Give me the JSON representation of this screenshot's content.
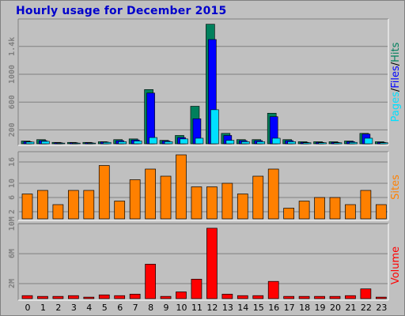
{
  "title": "Hourly usage for December 2015",
  "colors": {
    "background": "#c0c0c0",
    "title": "#0000cc",
    "hits": "#00805c",
    "files": "#0000ff",
    "pages": "#00e0ff",
    "sites": "#ff8000",
    "volume": "#ff0000",
    "tick_label": "#808080",
    "grid": "#808080"
  },
  "chart_data": [
    {
      "type": "bar",
      "categories": [
        "0",
        "1",
        "2",
        "3",
        "4",
        "5",
        "6",
        "7",
        "8",
        "9",
        "10",
        "11",
        "12",
        "13",
        "14",
        "15",
        "16",
        "17",
        "18",
        "19",
        "20",
        "21",
        "22",
        "23"
      ],
      "series": [
        {
          "name": "Hits",
          "color": "#00805c",
          "values": [
            40,
            60,
            20,
            20,
            20,
            30,
            60,
            70,
            780,
            50,
            120,
            540,
            1720,
            150,
            60,
            60,
            440,
            60,
            30,
            30,
            30,
            40,
            150,
            30
          ]
        },
        {
          "name": "Files",
          "color": "#0000ff",
          "values": [
            30,
            45,
            15,
            15,
            15,
            25,
            45,
            55,
            730,
            40,
            90,
            360,
            1500,
            120,
            45,
            45,
            390,
            45,
            20,
            20,
            20,
            30,
            140,
            20
          ]
        },
        {
          "name": "Pages",
          "color": "#00e0ff",
          "values": [
            25,
            35,
            10,
            10,
            10,
            20,
            30,
            40,
            90,
            30,
            70,
            80,
            490,
            50,
            30,
            30,
            80,
            30,
            15,
            15,
            15,
            20,
            80,
            15
          ]
        }
      ],
      "side_label": [
        "Pages",
        "/",
        "Files",
        "/",
        "Hits"
      ],
      "y_ticks": [
        "200",
        "600",
        "1000",
        "1.4k"
      ],
      "y_tick_values": [
        200,
        600,
        1000,
        1400
      ],
      "ylim": [
        0,
        1750
      ],
      "grid": true
    },
    {
      "type": "bar",
      "categories": [
        "0",
        "1",
        "2",
        "3",
        "4",
        "5",
        "6",
        "7",
        "8",
        "9",
        "10",
        "11",
        "12",
        "13",
        "14",
        "15",
        "16",
        "17",
        "18",
        "19",
        "20",
        "21",
        "22",
        "23"
      ],
      "series": [
        {
          "name": "Sites",
          "color": "#ff8000",
          "values": [
            7,
            8,
            4,
            8,
            8,
            15,
            5,
            11,
            14,
            12,
            18,
            9,
            9,
            10,
            7,
            12,
            14,
            3,
            5,
            6,
            6,
            4,
            8,
            4
          ]
        }
      ],
      "side_label": [
        "Sites"
      ],
      "y_ticks": [
        "2",
        "6",
        "10",
        "16"
      ],
      "y_tick_values": [
        2,
        6,
        10,
        16
      ],
      "ylim": [
        0,
        18
      ],
      "grid": true
    },
    {
      "type": "bar",
      "categories": [
        "0",
        "1",
        "2",
        "3",
        "4",
        "5",
        "6",
        "7",
        "8",
        "9",
        "10",
        "11",
        "12",
        "13",
        "14",
        "15",
        "16",
        "17",
        "18",
        "19",
        "20",
        "21",
        "22",
        "23"
      ],
      "series": [
        {
          "name": "Volume",
          "color": "#ff0000",
          "values": [
            0.4,
            0.3,
            0.3,
            0.4,
            0.2,
            0.5,
            0.4,
            0.6,
            4.6,
            0.3,
            0.9,
            2.6,
            9.4,
            0.6,
            0.4,
            0.4,
            2.3,
            0.3,
            0.3,
            0.3,
            0.3,
            0.4,
            1.3,
            0.2
          ]
        }
      ],
      "side_label": [
        "Volume"
      ],
      "y_ticks": [
        "2M",
        "6M",
        "10M"
      ],
      "y_tick_values": [
        2,
        6,
        10
      ],
      "ylim": [
        0,
        9.6
      ],
      "grid": true
    }
  ]
}
